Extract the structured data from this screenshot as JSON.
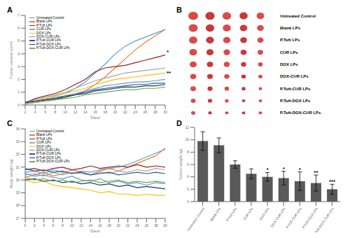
{
  "chart_data": [
    {
      "title": "A",
      "type": "line",
      "x_label": "Days",
      "y_label": "Tumor volume (cm³)",
      "x": [
        2,
        4,
        6,
        8,
        10,
        12,
        14,
        16,
        18,
        20,
        22,
        24,
        26,
        28,
        30
      ],
      "xlim": [
        2,
        30
      ],
      "xticks": [
        2,
        4,
        6,
        8,
        10,
        12,
        14,
        16,
        18,
        20,
        22,
        24,
        26,
        28,
        30
      ],
      "ylim": [
        0,
        7
      ],
      "yticks": [
        0,
        1,
        2,
        3,
        4,
        5,
        6,
        7
      ],
      "legend": "upper left",
      "annotations": [
        "*",
        "**"
      ],
      "series": [
        {
          "name": "Untreated Control",
          "color": "#4f9fd8",
          "values": [
            0.2,
            0.3,
            0.5,
            0.7,
            0.9,
            1.3,
            1.8,
            2.5,
            3.2,
            4.0,
            4.6,
            5.0,
            5.3,
            5.6,
            5.9
          ]
        },
        {
          "name": "Blank LPs",
          "color": "#ed7d31",
          "values": [
            0.1,
            0.2,
            0.3,
            0.4,
            0.6,
            0.8,
            1.1,
            1.6,
            2.2,
            2.9,
            3.6,
            4.3,
            4.9,
            5.4,
            5.9
          ]
        },
        {
          "name": "P.Tuft LPs",
          "color": "#9e1b1b",
          "values": [
            0.2,
            0.5,
            0.7,
            0.9,
            1.2,
            1.6,
            2.0,
            2.6,
            2.9,
            3.0,
            3.1,
            3.3,
            3.5,
            3.7,
            3.9
          ]
        },
        {
          "name": "CUR LPs",
          "color": "#a5a5a5",
          "values": [
            0.2,
            0.4,
            0.6,
            0.8,
            1.0,
            1.3,
            1.6,
            1.9,
            2.1,
            2.3,
            2.5,
            2.6,
            2.7,
            2.8,
            2.9
          ]
        },
        {
          "name": "DOX LPs",
          "color": "#ffc000",
          "values": [
            0.2,
            0.3,
            0.5,
            0.7,
            0.9,
            1.1,
            1.3,
            1.6,
            1.8,
            2.0,
            2.1,
            2.2,
            2.3,
            2.4,
            2.5
          ]
        },
        {
          "name": "DOX-CUR LPs",
          "color": "#5b9bd5",
          "values": [
            0.2,
            0.3,
            0.4,
            0.6,
            0.7,
            0.9,
            1.1,
            1.3,
            1.5,
            1.6,
            1.7,
            1.8,
            1.8,
            1.9,
            2.0
          ]
        },
        {
          "name": "P.Tuft-CUR LPs",
          "color": "#2e5597",
          "values": [
            0.2,
            0.3,
            0.4,
            0.5,
            0.7,
            0.8,
            1.0,
            1.2,
            1.3,
            1.4,
            1.5,
            1.6,
            1.6,
            1.7,
            1.7
          ]
        },
        {
          "name": "P.Tuft-DOX LPs",
          "color": "#1f3864",
          "values": [
            0.2,
            0.3,
            0.4,
            0.5,
            0.6,
            0.8,
            0.9,
            1.1,
            1.2,
            1.3,
            1.4,
            1.4,
            1.5,
            1.5,
            1.6
          ]
        },
        {
          "name": "P.Tuft-DOX-CUR LPs",
          "color": "#70ad47",
          "values": [
            0.1,
            0.2,
            0.3,
            0.4,
            0.5,
            0.6,
            0.8,
            0.9,
            1.0,
            1.1,
            1.2,
            1.2,
            1.3,
            1.3,
            1.4
          ]
        }
      ]
    },
    {
      "title": "B",
      "type": "image",
      "labels": [
        "Untreated Control",
        "Blank LPs",
        "P.Tuft LPs",
        "CUR LPs",
        "DOX LPs",
        "DOX-CUR LPs",
        "P.Tuft-CUR LPs",
        "P.Tuft-DOX LPs",
        "P.Tuft-DOX-CUR LPs"
      ]
    },
    {
      "title": "C",
      "type": "line",
      "x_label": "Days",
      "y_label": "Body weight (g)",
      "x": [
        0,
        2,
        4,
        6,
        8,
        10,
        12,
        14,
        16,
        18,
        20,
        22,
        24,
        26,
        28,
        30
      ],
      "xlim": [
        0,
        30
      ],
      "xticks": [
        0,
        2,
        4,
        6,
        8,
        10,
        12,
        14,
        16,
        18,
        20,
        22,
        24,
        26,
        28,
        30
      ],
      "ylim": [
        27,
        34
      ],
      "yticks": [
        27,
        28,
        29,
        30,
        31,
        32,
        33,
        34
      ],
      "legend": "upper left",
      "series": [
        {
          "name": "Untreated Control",
          "color": "#4f9fd8",
          "values": [
            30.6,
            30.7,
            30.5,
            30.8,
            30.6,
            30.5,
            30.7,
            30.6,
            30.8,
            30.9,
            31.0,
            31.2,
            31.5,
            31.8,
            32.1,
            32.4
          ]
        },
        {
          "name": "Blank LPs",
          "color": "#ed7d31",
          "values": [
            30.2,
            30.4,
            30.6,
            30.3,
            30.5,
            30.8,
            30.6,
            30.4,
            30.7,
            30.9,
            30.7,
            31.0,
            31.3,
            31.6,
            31.9,
            32.5
          ]
        },
        {
          "name": "P.Tuft LPs",
          "color": "#9e1b1b",
          "values": [
            30.8,
            30.9,
            30.7,
            30.9,
            31.0,
            30.8,
            30.9,
            31.1,
            30.9,
            31.0,
            31.1,
            31.0,
            31.2,
            31.0,
            31.1,
            31.0
          ]
        },
        {
          "name": "CUR LPs",
          "color": "#a5a5a5",
          "values": [
            30.4,
            30.5,
            30.3,
            30.6,
            30.4,
            30.6,
            30.5,
            30.4,
            30.6,
            30.5,
            30.7,
            30.6,
            30.8,
            30.7,
            30.9,
            30.8
          ]
        },
        {
          "name": "DOX LPs",
          "color": "#ffc000",
          "values": [
            30.0,
            29.8,
            29.9,
            29.6,
            29.5,
            29.4,
            29.3,
            29.2,
            29.0,
            29.1,
            28.9,
            28.9,
            28.8,
            28.9,
            28.8,
            28.8
          ]
        },
        {
          "name": "DOX-CUR LPs",
          "color": "#5b9bd5",
          "values": [
            30.5,
            30.3,
            30.4,
            30.2,
            30.1,
            30.3,
            30.0,
            29.9,
            30.1,
            29.8,
            29.9,
            29.7,
            29.8,
            29.6,
            29.8,
            29.7
          ]
        },
        {
          "name": "P.Tuft-CUR LPs",
          "color": "#2e5597",
          "values": [
            30.9,
            30.7,
            30.8,
            30.6,
            30.7,
            30.5,
            30.6,
            30.4,
            30.5,
            30.6,
            30.4,
            30.5,
            30.6,
            30.5,
            30.6,
            30.5
          ]
        },
        {
          "name": "P.Tuft-DOX LPs",
          "color": "#1f3864",
          "values": [
            30.0,
            30.1,
            29.9,
            30.0,
            29.8,
            29.9,
            29.7,
            29.8,
            29.6,
            29.7,
            29.5,
            29.6,
            29.4,
            29.5,
            29.4,
            29.3
          ]
        },
        {
          "name": "P.Tuft-DOX-CUR LPs",
          "color": "#70ad47",
          "values": [
            30.2,
            30.0,
            30.1,
            29.9,
            30.0,
            29.8,
            29.9,
            30.0,
            29.8,
            29.9,
            30.0,
            29.8,
            29.9,
            29.8,
            29.9,
            29.8
          ]
        }
      ]
    },
    {
      "title": "D",
      "type": "bar",
      "y_label": "Tumor weight (g)",
      "color": "#595959",
      "categories": [
        "Untreated Control",
        "Blank LPs",
        "P.Tuft LPs",
        "CUR LPs",
        "DOX LPs",
        "DOX-CUR LPs",
        "P.Tuft-CUR LPs",
        "P.Tuft-DOX LPs",
        "P.Tuft-DOX-CUR LPs"
      ],
      "values": [
        9.8,
        9.1,
        6.0,
        4.5,
        4.0,
        3.8,
        3.3,
        3.0,
        2.0
      ],
      "errors": [
        1.5,
        1.2,
        0.6,
        0.8,
        0.7,
        1.1,
        1.5,
        1.3,
        0.8
      ],
      "annotations": [
        null,
        null,
        null,
        null,
        "*",
        "*",
        "*",
        "**",
        "***"
      ],
      "ylim": [
        0,
        12
      ],
      "yticks": [
        0,
        2,
        4,
        6,
        8,
        10,
        12
      ]
    }
  ]
}
